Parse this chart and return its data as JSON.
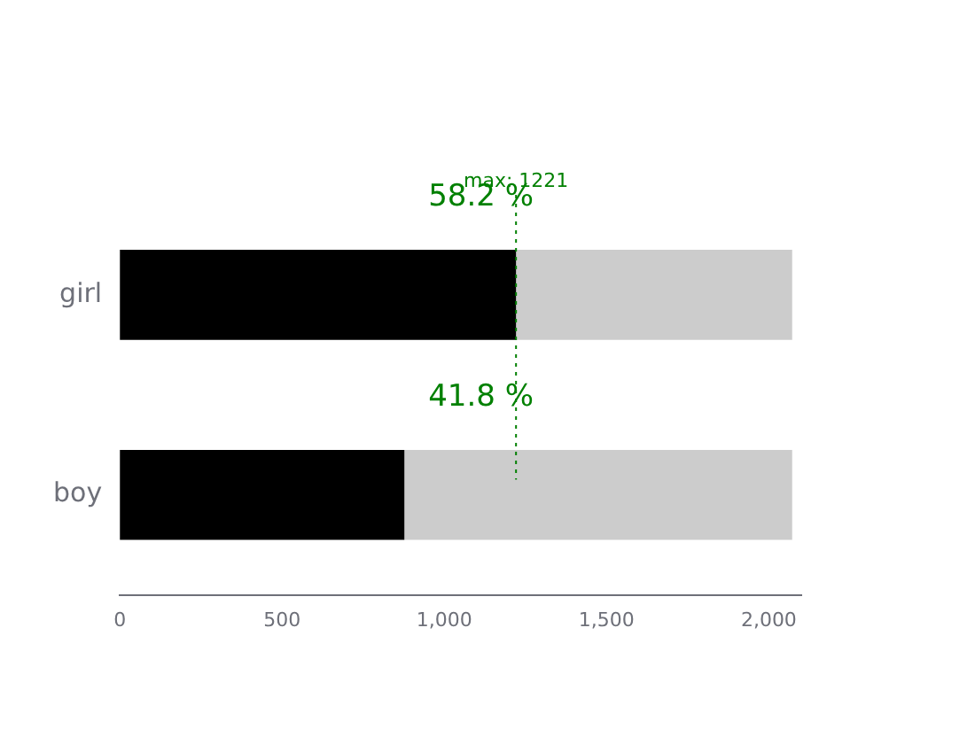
{
  "chart_data": {
    "type": "bar",
    "orientation": "horizontal",
    "categories": [
      "girl",
      "boy"
    ],
    "stacked": true,
    "series": [
      {
        "color": "#000000",
        "values": [
          1221,
          877
        ]
      },
      {
        "color": "#cccccc",
        "values": [
          851,
          1195
        ]
      }
    ],
    "xlim": [
      0,
      2100
    ],
    "xticks": [
      0,
      500,
      {
        "value": 1000,
        "label": "1,000"
      },
      {
        "value": 1500,
        "label": "1,500"
      },
      {
        "value": 2000,
        "label": "2,000"
      }
    ],
    "grid": false,
    "legend": false,
    "ref_lines": [
      {
        "axis": "x",
        "value": 1221,
        "label": "max: 1221",
        "color": "#008000",
        "line_style": "dotted"
      }
    ],
    "annotations": [
      "58.2 %",
      "41.8 %"
    ]
  }
}
